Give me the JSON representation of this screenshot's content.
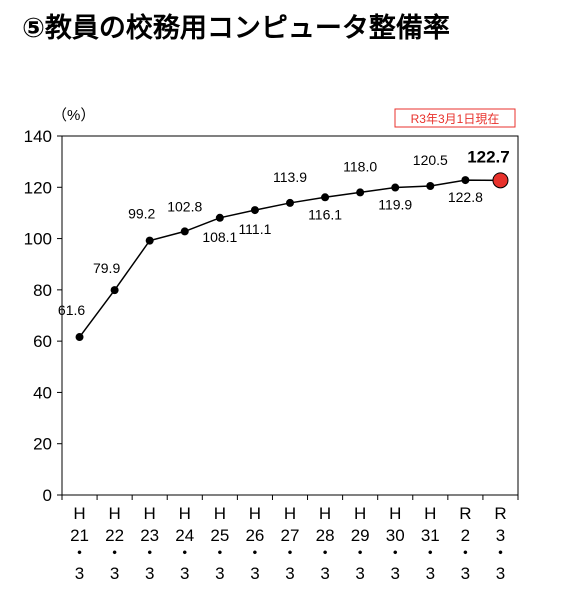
{
  "title": "⑤教員の校務用コンピュータ整備率",
  "chart_data": {
    "type": "line",
    "unit_label": "（%）",
    "date_note": "R3年3月1日現在",
    "categories": [
      [
        "H",
        "21",
        "・",
        "3"
      ],
      [
        "H",
        "22",
        "・",
        "3"
      ],
      [
        "H",
        "23",
        "・",
        "3"
      ],
      [
        "H",
        "24",
        "・",
        "3"
      ],
      [
        "H",
        "25",
        "・",
        "3"
      ],
      [
        "H",
        "26",
        "・",
        "3"
      ],
      [
        "H",
        "27",
        "・",
        "3"
      ],
      [
        "H",
        "28",
        "・",
        "3"
      ],
      [
        "H",
        "29",
        "・",
        "3"
      ],
      [
        "H",
        "30",
        "・",
        "3"
      ],
      [
        "H",
        "31",
        "・",
        "3"
      ],
      [
        "R",
        "2",
        "・",
        "3"
      ],
      [
        "R",
        "3",
        "・",
        "3"
      ]
    ],
    "values": [
      61.6,
      79.9,
      99.2,
      102.8,
      108.1,
      111.1,
      113.9,
      116.1,
      118.0,
      119.9,
      120.5,
      122.8,
      122.7
    ],
    "data_labels": [
      "61.6",
      "79.9",
      "99.2",
      "102.8",
      "108.1",
      "111.1",
      "113.9",
      "116.1",
      "118.0",
      "119.9",
      "120.5",
      "122.8",
      "122.7"
    ],
    "y_ticks": [
      "0",
      "20",
      "40",
      "60",
      "80",
      "100",
      "120",
      "140"
    ],
    "ylim": [
      0,
      140
    ],
    "highlight_color": "#e8322c",
    "line_color": "#000000",
    "note_color": "#e8322c",
    "grid": false
  }
}
